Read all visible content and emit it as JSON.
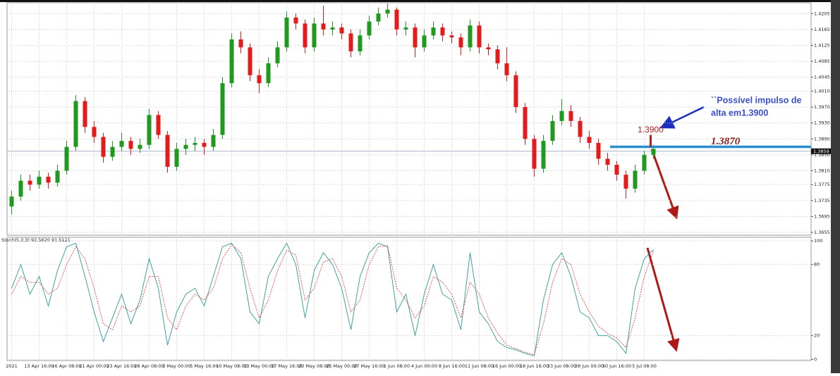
{
  "chart_data": [
    {
      "type": "candlestick",
      "categories": [
        "2021",
        null,
        null,
        "13 Apr 16:00",
        null,
        null,
        "16 Apr 08:00",
        null,
        null,
        "21 Apr 00:00",
        null,
        null,
        "23 Apr 16:00",
        null,
        null,
        "28 Apr 08:00",
        null,
        null,
        "3 May 00:00",
        null,
        null,
        "5 May 16:00",
        null,
        null,
        "10 May 08:00",
        null,
        null,
        "13 May 00:00",
        null,
        null,
        "17 May 16:00",
        null,
        null,
        "20 May 08:00",
        null,
        null,
        "25 May 00:00",
        null,
        null,
        "27 May 16:00",
        null,
        null,
        "1 Jun 08:00",
        null,
        null,
        "4 Jun 00:00",
        null,
        null,
        "8 Jun 16:00",
        null,
        null,
        "11 Jun 08:00",
        null,
        null,
        "16 Jun 00:00",
        null,
        null,
        "18 Jun 16:00",
        null,
        null,
        "23 Jun 08:00",
        null,
        null,
        "28 Jun 00:00",
        null,
        null,
        "30 Jun 16:00",
        null,
        null,
        "5 Jul 08:00",
        null
      ],
      "ohlc": [
        [
          1.372,
          1.376,
          1.37,
          1.3745
        ],
        [
          1.3745,
          1.38,
          1.3735,
          1.3785
        ],
        [
          1.3785,
          1.38,
          1.376,
          1.3775
        ],
        [
          1.3775,
          1.381,
          1.3765,
          1.3795
        ],
        [
          1.3795,
          1.3805,
          1.3765,
          1.378
        ],
        [
          1.378,
          1.3825,
          1.377,
          1.381
        ],
        [
          1.381,
          1.3885,
          1.38,
          1.387
        ],
        [
          1.387,
          1.4,
          1.386,
          1.3985
        ],
        [
          1.3985,
          1.3995,
          1.3905,
          1.392
        ],
        [
          1.392,
          1.3935,
          1.388,
          1.3895
        ],
        [
          1.3895,
          1.3905,
          1.383,
          1.3845
        ],
        [
          1.3845,
          1.3885,
          1.3835,
          1.387
        ],
        [
          1.387,
          1.3905,
          1.386,
          1.3885
        ],
        [
          1.3885,
          1.3895,
          1.385,
          1.3865
        ],
        [
          1.3865,
          1.389,
          1.3855,
          1.3875
        ],
        [
          1.3875,
          1.3965,
          1.3865,
          1.395
        ],
        [
          1.395,
          1.396,
          1.389,
          1.39
        ],
        [
          1.39,
          1.391,
          1.3805,
          1.382
        ],
        [
          1.382,
          1.388,
          1.381,
          1.3865
        ],
        [
          1.3865,
          1.389,
          1.385,
          1.3875
        ],
        [
          1.3875,
          1.3895,
          1.386,
          1.388
        ],
        [
          1.388,
          1.389,
          1.385,
          1.387
        ],
        [
          1.387,
          1.3915,
          1.386,
          1.39
        ],
        [
          1.39,
          1.4045,
          1.389,
          1.403
        ],
        [
          1.403,
          1.4155,
          1.402,
          1.414
        ],
        [
          1.414,
          1.416,
          1.4105,
          1.412
        ],
        [
          1.412,
          1.413,
          1.4035,
          1.405
        ],
        [
          1.405,
          1.4065,
          1.4005,
          1.403
        ],
        [
          1.403,
          1.4095,
          1.402,
          1.408
        ],
        [
          1.408,
          1.4135,
          1.407,
          1.412
        ],
        [
          1.412,
          1.421,
          1.411,
          1.4195
        ],
        [
          1.4195,
          1.4205,
          1.4165,
          1.418
        ],
        [
          1.418,
          1.419,
          1.4105,
          1.412
        ],
        [
          1.412,
          1.4195,
          1.411,
          1.418
        ],
        [
          1.418,
          1.4225,
          1.415,
          1.4165
        ],
        [
          1.4165,
          1.4185,
          1.415,
          1.417
        ],
        [
          1.417,
          1.418,
          1.414,
          1.4155
        ],
        [
          1.4155,
          1.4165,
          1.4095,
          1.411
        ],
        [
          1.411,
          1.4165,
          1.41,
          1.415
        ],
        [
          1.415,
          1.42,
          1.414,
          1.4185
        ],
        [
          1.4185,
          1.422,
          1.4175,
          1.4205
        ],
        [
          1.4205,
          1.423,
          1.4195,
          1.4215
        ],
        [
          1.4215,
          1.422,
          1.415,
          1.4165
        ],
        [
          1.4165,
          1.4185,
          1.415,
          1.417
        ],
        [
          1.417,
          1.418,
          1.4095,
          1.412
        ],
        [
          1.412,
          1.4165,
          1.411,
          1.415
        ],
        [
          1.415,
          1.4185,
          1.414,
          1.417
        ],
        [
          1.417,
          1.418,
          1.4135,
          1.415
        ],
        [
          1.415,
          1.416,
          1.413,
          1.4145
        ],
        [
          1.4145,
          1.4155,
          1.41,
          1.412
        ],
        [
          1.412,
          1.419,
          1.411,
          1.4175
        ],
        [
          1.4175,
          1.4185,
          1.4105,
          1.412
        ],
        [
          1.412,
          1.413,
          1.41,
          1.4115
        ],
        [
          1.4115,
          1.4125,
          1.4065,
          1.408
        ],
        [
          1.408,
          1.412,
          1.4035,
          1.405
        ],
        [
          1.405,
          1.406,
          1.3955,
          1.397
        ],
        [
          1.397,
          1.398,
          1.3875,
          1.389
        ],
        [
          1.389,
          1.39,
          1.3795,
          1.3815
        ],
        [
          1.3815,
          1.39,
          1.3805,
          1.3885
        ],
        [
          1.3885,
          1.395,
          1.3875,
          1.3935
        ],
        [
          1.3935,
          1.399,
          1.3925,
          1.396
        ],
        [
          1.396,
          1.3975,
          1.392,
          1.3935
        ],
        [
          1.3935,
          1.3945,
          1.388,
          1.3895
        ],
        [
          1.3895,
          1.391,
          1.3865,
          1.388
        ],
        [
          1.388,
          1.389,
          1.3825,
          1.384
        ],
        [
          1.384,
          1.3855,
          1.381,
          1.3825
        ],
        [
          1.3825,
          1.3835,
          1.3785,
          1.38
        ],
        [
          1.38,
          1.381,
          1.374,
          1.3765
        ],
        [
          1.3765,
          1.3825,
          1.3755,
          1.381
        ],
        [
          1.381,
          1.386,
          1.38,
          1.385
        ],
        [
          1.385,
          1.3875,
          1.384,
          1.3865
        ]
      ],
      "up_color": "#1f9a1f",
      "down_color": "#e31b1b",
      "ylim": [
        1.3648,
        1.4232
      ],
      "yticks": [
        1.4205,
        1.4165,
        1.4125,
        1.4085,
        1.4045,
        {
          "value": 1.401,
          "label": "1.4010"
        },
        {
          "value": 1.397,
          "label": "1.3970"
        },
        {
          "value": 1.393,
          "label": "1.3930"
        },
        {
          "value": 1.389,
          "label": "1.3890"
        },
        {
          "value": 1.385,
          "label": "1.3850"
        },
        {
          "value": 1.381,
          "label": "1.3810"
        },
        1.3775,
        1.3735,
        1.3695,
        1.3655
      ],
      "grid": true,
      "last_price": 1.3859,
      "level": {
        "value": 1.387,
        "label": "1.3870",
        "color": "#2a8fd0"
      },
      "marker": {
        "value": 1.39,
        "label": "1.3900",
        "color": "#b02020"
      },
      "annotation": [
        "``Possível impulso de",
        "alta em1.3900"
      ]
    },
    {
      "type": "line",
      "title": "Stoch(5,3,3) 92.5620 91.5121",
      "ylim": [
        -1,
        103
      ],
      "yticks": [
        100,
        80,
        20,
        0
      ],
      "grid": true,
      "series": [
        {
          "color": "#2a9a9a",
          "style": "solid",
          "values": [
            60,
            80,
            55,
            70,
            45,
            75,
            95,
            98,
            70,
            40,
            15,
            35,
            55,
            30,
            50,
            85,
            60,
            12,
            40,
            55,
            60,
            45,
            70,
            95,
            98,
            85,
            40,
            30,
            70,
            85,
            98,
            80,
            35,
            75,
            90,
            80,
            60,
            25,
            70,
            90,
            98,
            95,
            40,
            55,
            20,
            55,
            80,
            55,
            50,
            25,
            90,
            40,
            30,
            15,
            10,
            8,
            5,
            3,
            50,
            80,
            90,
            70,
            40,
            35,
            20,
            20,
            15,
            5,
            60,
            85,
            92.562
          ]
        },
        {
          "color": "#e04040",
          "style": "dashed",
          "values": [
            55,
            70,
            65,
            65,
            55,
            60,
            80,
            95,
            85,
            60,
            30,
            25,
            45,
            40,
            45,
            70,
            70,
            35,
            25,
            45,
            55,
            50,
            60,
            85,
            97,
            90,
            60,
            35,
            50,
            75,
            92,
            88,
            50,
            60,
            82,
            85,
            70,
            40,
            50,
            80,
            95,
            96,
            60,
            50,
            35,
            45,
            70,
            65,
            55,
            35,
            65,
            55,
            35,
            22,
            12,
            9,
            6,
            4,
            30,
            65,
            85,
            80,
            55,
            40,
            28,
            22,
            18,
            10,
            35,
            70,
            91.5121
          ]
        }
      ]
    }
  ]
}
